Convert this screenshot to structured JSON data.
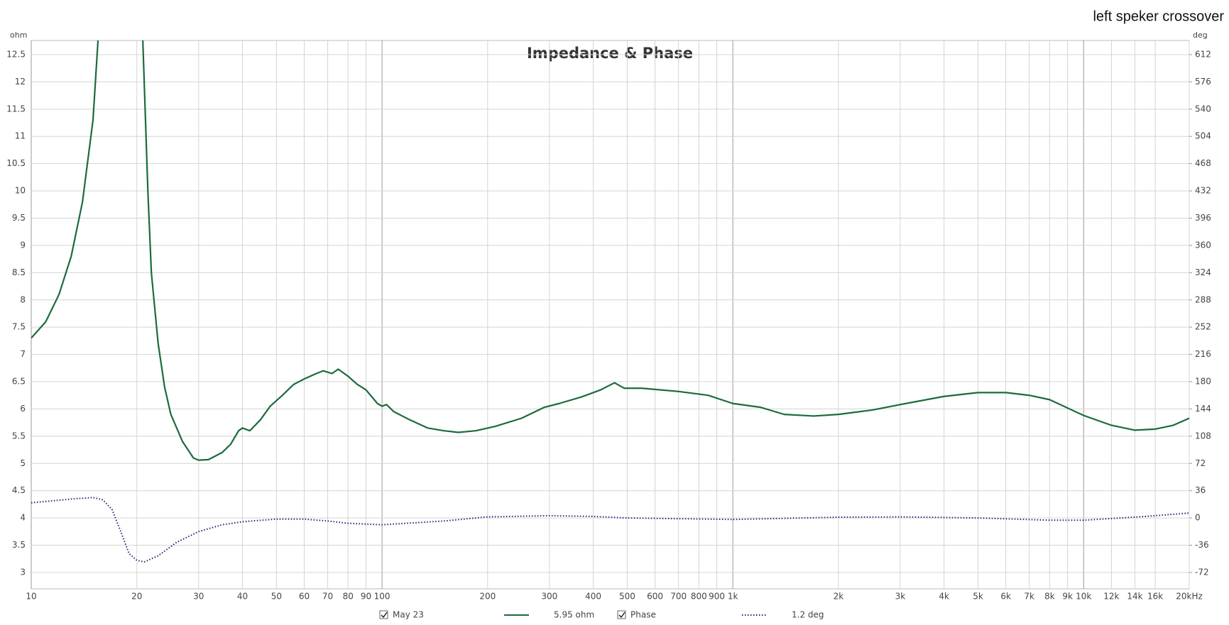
{
  "chart_data": {
    "type": "line",
    "title": "Impedance & Phase",
    "window_title": "left speker crossover",
    "ylabel": "ohm",
    "y2label": "deg",
    "xscale": "log",
    "grid": true,
    "xlim": [
      10,
      20000
    ],
    "xticks": [
      10,
      20,
      30,
      40,
      50,
      60,
      70,
      80,
      90,
      100,
      200,
      300,
      400,
      500,
      600,
      700,
      800,
      900,
      {
        "value": 1000,
        "label": "1k"
      },
      {
        "value": 2000,
        "label": "2k"
      },
      {
        "value": 3000,
        "label": "3k"
      },
      {
        "value": 4000,
        "label": "4k"
      },
      {
        "value": 5000,
        "label": "5k"
      },
      {
        "value": 6000,
        "label": "6k"
      },
      {
        "value": 7000,
        "label": "7k"
      },
      {
        "value": 8000,
        "label": "8k"
      },
      {
        "value": 9000,
        "label": "9k"
      },
      {
        "value": 10000,
        "label": "10k"
      },
      {
        "value": 12000,
        "label": "12k"
      },
      {
        "value": 14000,
        "label": "14k"
      },
      {
        "value": 16000,
        "label": "16k"
      },
      {
        "value": 20000,
        "label": "20kHz"
      }
    ],
    "ylim": [
      2.7,
      12.76
    ],
    "yticks": [
      3,
      3.5,
      4,
      4.5,
      5,
      5.5,
      6,
      6.5,
      7,
      7.5,
      8,
      8.5,
      9,
      9.5,
      10,
      10.5,
      11,
      11.5,
      12,
      12.5
    ],
    "y2lim": [
      -93.6,
      630.72
    ],
    "y2ticks": [
      -72,
      -36,
      0,
      36,
      72,
      108,
      144,
      180,
      216,
      252,
      288,
      324,
      360,
      396,
      432,
      468,
      504,
      540,
      576,
      612
    ],
    "series": [
      {
        "name": "May 23",
        "readout": "5.95 ohm",
        "color": "#1b6b3c",
        "dash": "solid",
        "x": [
          10,
          11,
          12,
          13,
          14,
          15,
          15.5,
          18,
          20.8,
          21.5,
          22,
          23,
          24,
          25,
          27,
          29,
          30,
          32,
          35,
          37,
          39,
          40,
          42,
          45,
          48,
          52,
          56,
          60,
          65,
          68,
          72,
          75,
          80,
          85,
          90,
          97,
          100,
          103,
          108,
          120,
          135,
          150,
          165,
          185,
          210,
          250,
          290,
          320,
          370,
          420,
          460,
          490,
          550,
          700,
          850,
          1000,
          1200,
          1400,
          1700,
          2000,
          2500,
          3000,
          4000,
          5000,
          6000,
          7000,
          8000,
          10000,
          12000,
          14000,
          16000,
          18000,
          20000
        ],
        "values": [
          7.3,
          7.6,
          8.1,
          8.8,
          9.8,
          11.3,
          12.76,
          null,
          12.76,
          10,
          8.5,
          7.2,
          6.4,
          5.9,
          5.4,
          5.1,
          5.06,
          5.07,
          5.2,
          5.35,
          5.6,
          5.65,
          5.6,
          5.8,
          6.05,
          6.25,
          6.45,
          6.55,
          6.65,
          6.7,
          6.65,
          6.73,
          6.6,
          6.45,
          6.35,
          6.1,
          6.05,
          6.08,
          5.95,
          5.8,
          5.65,
          5.6,
          5.57,
          5.6,
          5.68,
          5.83,
          6.03,
          6.1,
          6.22,
          6.35,
          6.48,
          6.38,
          6.38,
          6.32,
          6.25,
          6.1,
          6.03,
          5.9,
          5.87,
          5.9,
          5.98,
          6.08,
          6.23,
          6.3,
          6.3,
          6.25,
          6.17,
          5.88,
          5.7,
          5.61,
          5.63,
          5.7,
          5.83
        ]
      },
      {
        "name": "Phase",
        "readout": "1.2 deg",
        "color": "#2a1f70",
        "dash": "dotted",
        "axis": "y2",
        "x": [
          10,
          13,
          15,
          16,
          17,
          18,
          19,
          20,
          21,
          23,
          26,
          30,
          35,
          40,
          50,
          60,
          70,
          80,
          100,
          150,
          200,
          300,
          400,
          500,
          1000,
          2000,
          3000,
          5000,
          8000,
          10000,
          15000,
          20000
        ],
        "values": [
          20,
          25,
          27,
          24,
          11,
          -18,
          -47,
          -56,
          -58,
          -50,
          -32,
          -18,
          -9,
          -5,
          -1.5,
          -1.5,
          -4,
          -7,
          -9,
          -4,
          1.4,
          3,
          2,
          0,
          -2,
          1,
          1.4,
          0,
          -3,
          -3,
          2,
          6.5
        ]
      }
    ]
  }
}
